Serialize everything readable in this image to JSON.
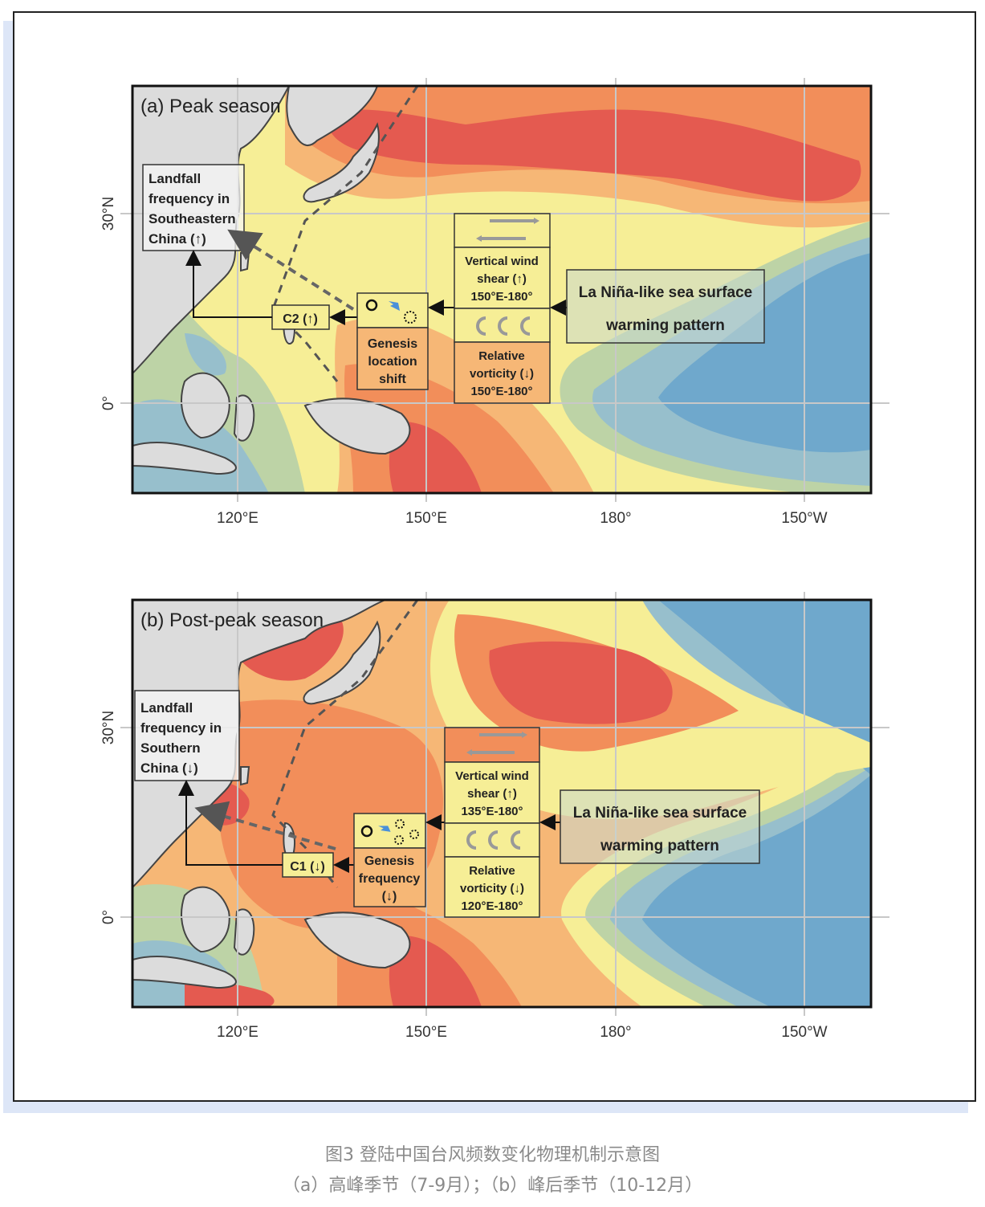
{
  "colors": {
    "red": "#e45a50",
    "orange": "#f28e5a",
    "lightorange": "#f6b776",
    "yellow": "#f6ee96",
    "sage": "#bdd3a6",
    "lightblue": "#97bfcc",
    "blue": "#6fa8cc",
    "land": "#dcdcdc"
  },
  "panel_a": {
    "title": "(a) Peak season",
    "axes": {
      "lat_labels": [
        "30°N",
        "0°"
      ],
      "lon_labels": [
        "120°E",
        "150°E",
        "180°",
        "150°W"
      ]
    },
    "landfall": [
      "Landfall",
      "frequency in",
      "Southeastern",
      "China (↑)"
    ],
    "cluster": "C2 (↑)",
    "genesis": [
      "Genesis",
      "location",
      "shift"
    ],
    "shear": [
      "Vertical wind",
      "shear (↑)",
      "150°E-180°"
    ],
    "vorticity": [
      "Relative",
      "vorticity (↓)",
      "150°E-180°"
    ],
    "lanina": [
      "La Niña-like sea surface",
      "warming pattern"
    ]
  },
  "panel_b": {
    "title": "(b) Post-peak season",
    "axes": {
      "lat_labels": [
        "30°N",
        "0°"
      ],
      "lon_labels": [
        "120°E",
        "150°E",
        "180°",
        "150°W"
      ]
    },
    "landfall": [
      "Landfall",
      "frequency in",
      "Southern",
      "China (↓)"
    ],
    "cluster": "C1 (↓)",
    "genesis": [
      "Genesis",
      "frequency",
      "(↓)"
    ],
    "shear": [
      "Vertical wind",
      "shear (↑)",
      "135°E-180°"
    ],
    "vorticity": [
      "Relative",
      "vorticity (↓)",
      "120°E-180°"
    ],
    "lanina": [
      "La Niña-like sea surface",
      "warming pattern"
    ]
  },
  "caption": {
    "line1": "图3 登陆中国台风频数变化物理机制示意图",
    "line2": "（a）高峰季节（7-9月）；（b）峰后季节（10-12月）"
  }
}
